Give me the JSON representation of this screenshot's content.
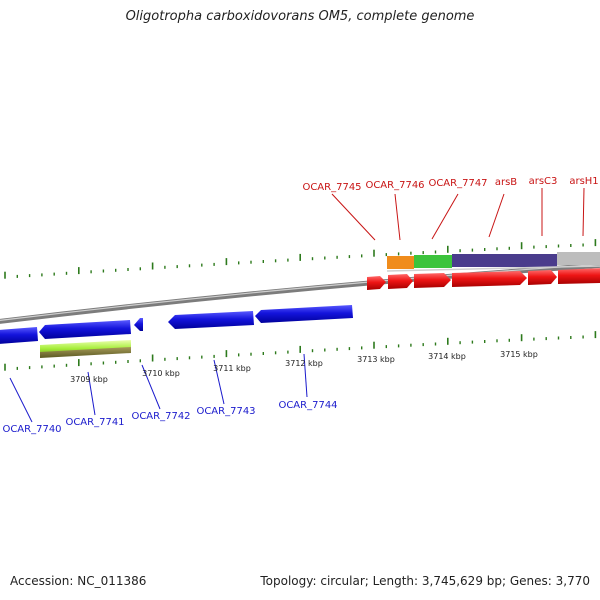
{
  "header": {
    "title": "Oligotropha carboxidovorans OM5, complete genome"
  },
  "footer": {
    "accession": "Accession: NC_011386",
    "summary": "Topology: circular; Length: 3,745,629 bp; Genes: 3,770"
  },
  "colors": {
    "forward_gene": "#e81010",
    "reverse_gene": "#1010d8",
    "forward_label": "#c81414",
    "reverse_label": "#1a1acc",
    "tick": "#2d7a1c",
    "backbone": "#8a8a8a"
  },
  "forward_genes": [
    {
      "label": "OCAR_7745"
    },
    {
      "label": "OCAR_7746"
    },
    {
      "label": "OCAR_7747"
    },
    {
      "label": "arsB"
    },
    {
      "label": "arsC3"
    },
    {
      "label": "arsH1"
    }
  ],
  "reverse_genes": [
    {
      "label": "OCAR_7740"
    },
    {
      "label": "OCAR_7741"
    },
    {
      "label": "OCAR_7742"
    },
    {
      "label": "OCAR_7743"
    },
    {
      "label": "OCAR_7744"
    }
  ],
  "scale_ticks": [
    "3709 kbp",
    "3710 kbp",
    "3711 kbp",
    "3712 kbp",
    "3713 kbp",
    "3714 kbp",
    "3715 kbp"
  ],
  "feature_bands": [
    {
      "name": "orange",
      "color": "#f08c1c"
    },
    {
      "name": "green",
      "color": "#3cc43c"
    },
    {
      "name": "purple",
      "color": "#4a3c8c"
    },
    {
      "name": "grey",
      "color": "#bdbdbd"
    },
    {
      "name": "lime",
      "color": "#a8f040"
    }
  ]
}
